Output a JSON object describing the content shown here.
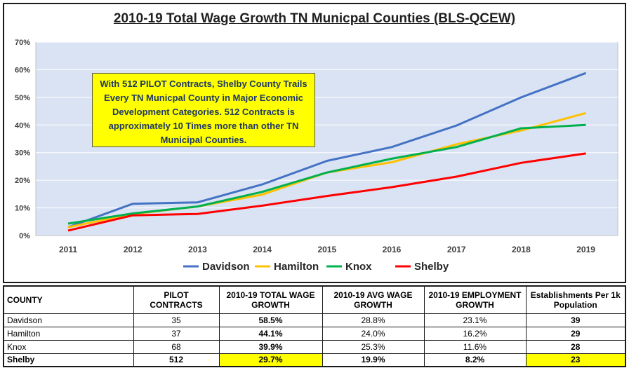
{
  "chart_data": {
    "type": "line",
    "title": "2010-19 Total Wage Growth TN Municpal Counties (BLS-QCEW)",
    "x": [
      "2011",
      "2012",
      "2013",
      "2014",
      "2015",
      "2016",
      "2017",
      "2018",
      "2019"
    ],
    "ylim": [
      0,
      70
    ],
    "yticks": [
      "0%",
      "10%",
      "20%",
      "30%",
      "40%",
      "50%",
      "60%",
      "70%"
    ],
    "ytick_values": [
      0,
      10,
      20,
      30,
      40,
      50,
      60,
      70
    ],
    "grid": true,
    "legend_position": "bottom",
    "series": [
      {
        "name": "Davidson",
        "color": "#4472c4",
        "values": [
          3.0,
          11.5,
          12.0,
          18.5,
          27.0,
          32.0,
          39.8,
          50.0,
          58.8
        ]
      },
      {
        "name": "Hamilton",
        "color": "#ffc000",
        "values": [
          3.0,
          7.8,
          10.5,
          14.8,
          22.8,
          26.5,
          33.0,
          38.0,
          44.3
        ]
      },
      {
        "name": "Knox",
        "color": "#00b050",
        "values": [
          4.3,
          8.0,
          10.5,
          15.8,
          22.8,
          27.8,
          32.0,
          38.8,
          40.0
        ]
      },
      {
        "name": "Shelby",
        "color": "#ff0000",
        "values": [
          1.8,
          7.3,
          7.8,
          10.8,
          14.3,
          17.5,
          21.3,
          26.3,
          29.7
        ]
      }
    ],
    "annotation": "With 512 PILOT Contracts, Shelby County Trails Every TN Municpal County in Major Economic Development Categories. 512 Contracts is approximately 10 Times more than other TN Municipal Counties."
  },
  "colors": {
    "plot_background": "#dae3f3",
    "gridline": "#ffffff",
    "callout_background": "#ffff00",
    "callout_text": "#1f3864",
    "highlight": "#ffff00"
  },
  "table": {
    "headers": [
      "COUNTY",
      "PILOT CONTRACTS",
      "2010-19 TOTAL WAGE GROWTH",
      "2010-19  AVG WAGE GROWTH",
      "2010-19 EMPLOYMENT GROWTH",
      "Establishments Per 1k Population"
    ],
    "rows": [
      {
        "county": "Davidson",
        "pilot": "35",
        "total_wage": "58.5%",
        "avg_wage": "28.8%",
        "employment": "23.1%",
        "establishments": "39"
      },
      {
        "county": "Hamilton",
        "pilot": "37",
        "total_wage": "44.1%",
        "avg_wage": "24.0%",
        "employment": "16.2%",
        "establishments": "29"
      },
      {
        "county": "Knox",
        "pilot": "68",
        "total_wage": "39.9%",
        "avg_wage": "25.3%",
        "employment": "11.6%",
        "establishments": "28"
      },
      {
        "county": "Shelby",
        "pilot": "512",
        "total_wage": "29.7%",
        "avg_wage": "19.9%",
        "employment": "8.2%",
        "establishments": "23"
      }
    ]
  }
}
